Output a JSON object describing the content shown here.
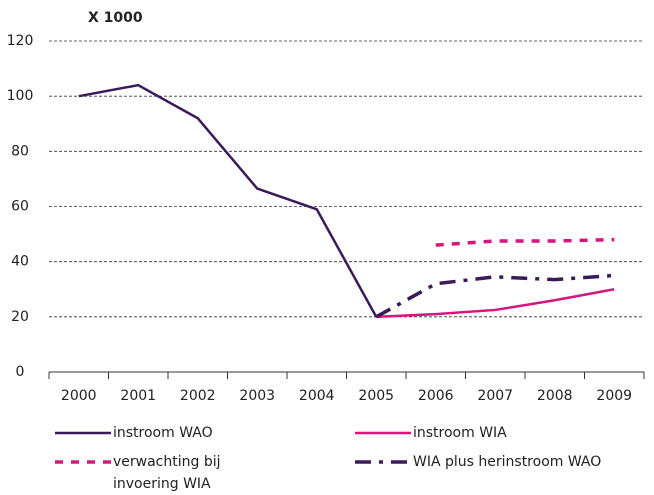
{
  "chart_data": {
    "type": "line",
    "y_unit_label": "X 1000",
    "categories": [
      "2000",
      "2001",
      "2002",
      "2003",
      "2004",
      "2005",
      "2006",
      "2007",
      "2008",
      "2009"
    ],
    "ylim": [
      0,
      120
    ],
    "yticks": [
      0,
      20,
      40,
      60,
      80,
      100,
      120
    ],
    "grid": true,
    "series": [
      {
        "name": "instroom WAO",
        "color": "#3b1a5c",
        "line_style": "solid",
        "values": [
          100,
          104,
          92,
          66.5,
          59,
          20,
          null,
          null,
          null,
          null
        ]
      },
      {
        "name": "instroom WIA",
        "color": "#d6157d",
        "line_style": "solid",
        "values": [
          null,
          null,
          null,
          null,
          null,
          20,
          21,
          22.5,
          26,
          30
        ]
      },
      {
        "name": "verwachting bij invoering WIA",
        "color": "#d6157d",
        "line_style": "dotted",
        "values": [
          null,
          null,
          null,
          null,
          null,
          null,
          46,
          47.5,
          47.5,
          48
        ]
      },
      {
        "name": "WIA plus herinstroom WAO",
        "color": "#3b1a5c",
        "line_style": "dashdot",
        "values": [
          null,
          null,
          null,
          null,
          null,
          20,
          32,
          34.5,
          33.5,
          35
        ]
      }
    ]
  }
}
